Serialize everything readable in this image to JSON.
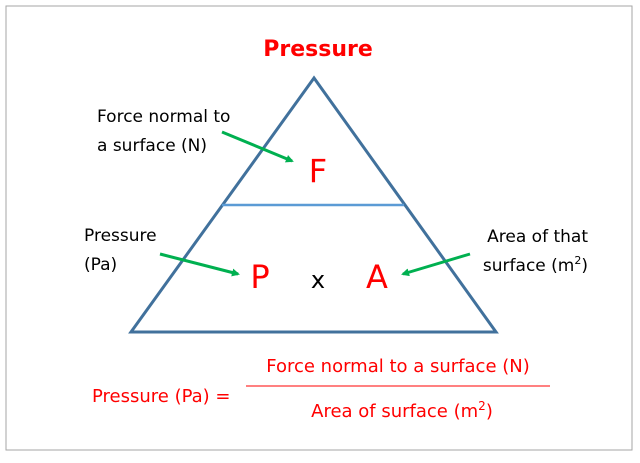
{
  "title": "Pressure",
  "triangle": {
    "top_label": [
      "Force normal to",
      "a surface (N)"
    ],
    "top_symbol": "F",
    "left_label": [
      "Pressure",
      "(Pa)"
    ],
    "left_symbol": "P",
    "operator": "x",
    "right_symbol": "A",
    "right_label": [
      "Area of that",
      "surface (m",
      "2",
      ")"
    ]
  },
  "formula": {
    "lhs": "Pressure (Pa) =",
    "numerator": "Force normal to a surface (N)",
    "denominator": "Area of surface (m",
    "denominator_sup": "2",
    "denominator_end": ")"
  },
  "colors": {
    "text_accent": "#ff0000",
    "triangle": "#41719c",
    "divider": "#5b9bd5",
    "arrows": "#00b050"
  }
}
